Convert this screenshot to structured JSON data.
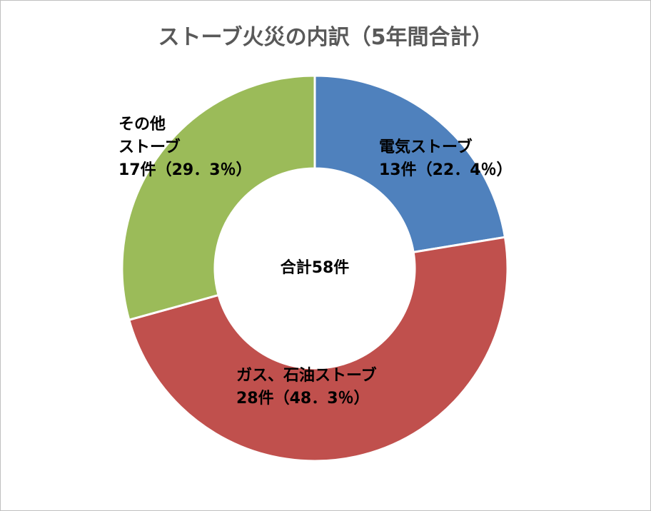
{
  "chart_data": {
    "type": "donut",
    "title": "ストーブ火災の内訳（5年間合計）",
    "categories": [
      "電気ストーブ",
      "ガス、石油ストーブ",
      "その他\nストーブ"
    ],
    "values": [
      13,
      28,
      17
    ],
    "value_labels": [
      "13件（22．4％）",
      "28件（48．3％）",
      "17件（29．3％）"
    ],
    "colors": [
      "#4f81bd",
      "#c0504d",
      "#9bbb59"
    ],
    "center_label": "合計58件"
  }
}
